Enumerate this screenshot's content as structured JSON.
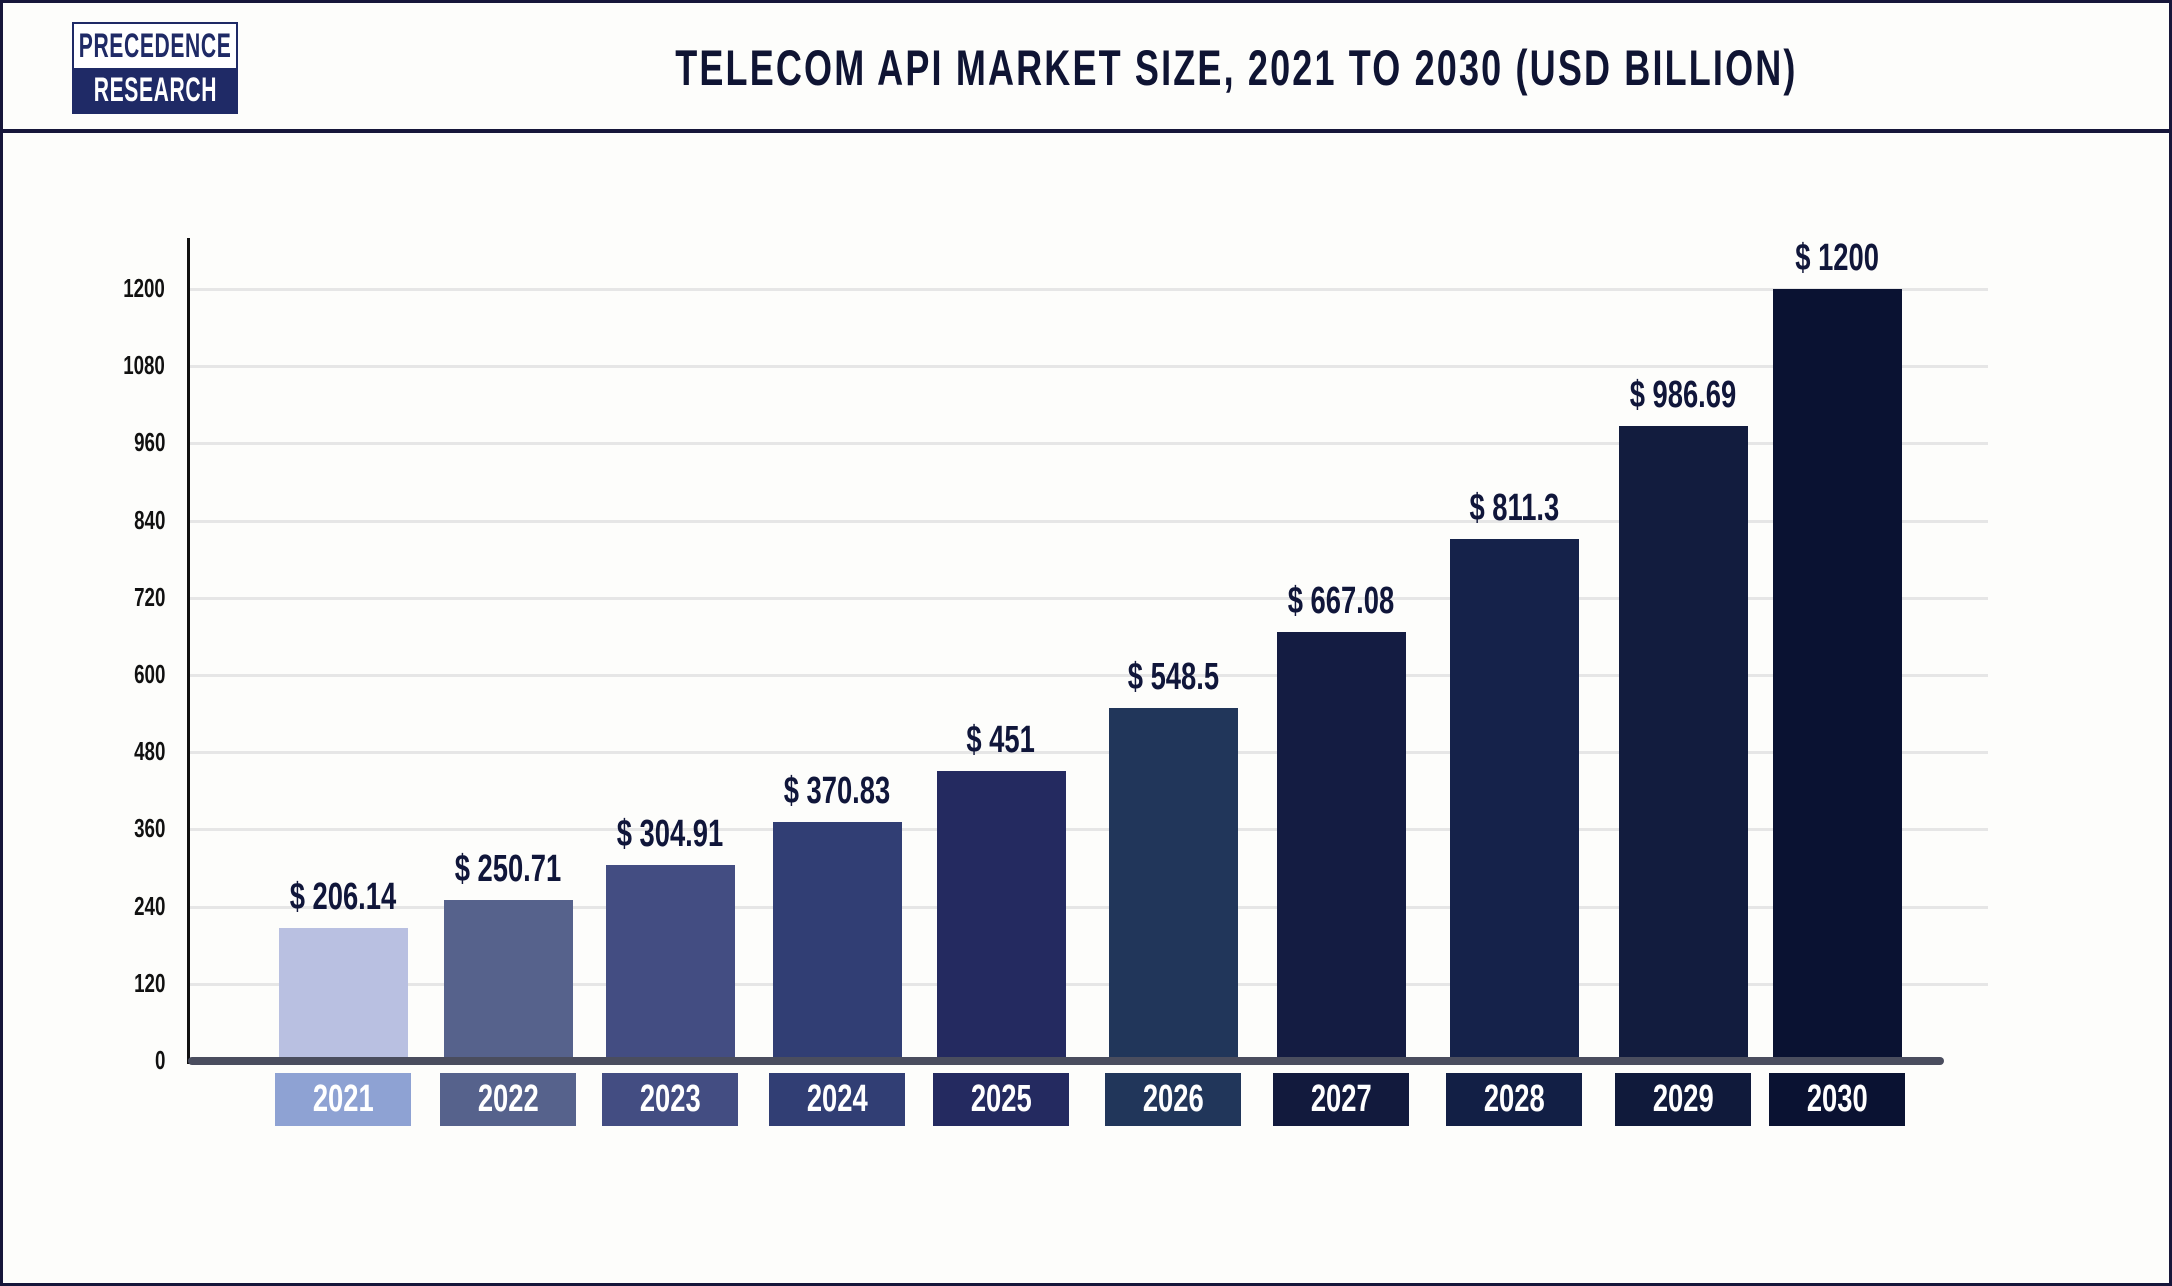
{
  "logo": {
    "line1": "PRECEDENCE",
    "line2": "RESEARCH"
  },
  "chart_data": {
    "type": "bar",
    "title": "TELECOM API MARKET SIZE, 2021 TO 2030 (USD BILLION)",
    "categories": [
      "2021",
      "2022",
      "2023",
      "2024",
      "2025",
      "2026",
      "2027",
      "2028",
      "2029",
      "2030"
    ],
    "values": [
      206.14,
      250.71,
      304.91,
      370.83,
      451,
      548.5,
      667.08,
      811.3,
      986.69,
      1200
    ],
    "data_labels": [
      "$ 206.14",
      "$ 250.71",
      "$ 304.91",
      "$ 370.83",
      "$ 451",
      "$ 548.5",
      "$ 667.08",
      "$ 811.3",
      "$ 986.69",
      "$ 1200"
    ],
    "yticks": [
      "0",
      "120",
      "240",
      "360",
      "480",
      "600",
      "720",
      "840",
      "960",
      "1080",
      "1200"
    ],
    "ylim": [
      0,
      1200
    ],
    "xlabel": "",
    "ylabel": "",
    "grid": true,
    "bar_colors": [
      "#b9c0e1",
      "#56628c",
      "#434d82",
      "#313e74",
      "#242a60",
      "#21365a",
      "#141c42",
      "#15224a",
      "#121c3e",
      "#0a1232"
    ],
    "category_box_colors": [
      "#8ea2d3",
      "#56628c",
      "#434d82",
      "#313e74",
      "#242a60",
      "#21365a",
      "#121a3d",
      "#121f45",
      "#101a3b",
      "#0a1232"
    ]
  }
}
